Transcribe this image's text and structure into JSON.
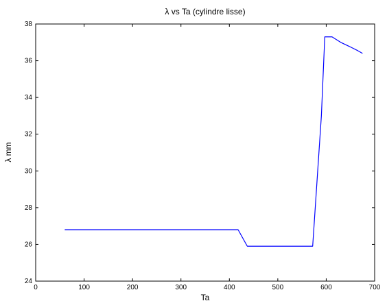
{
  "chart_data": {
    "type": "line",
    "title": "λ vs Ta (cylindre lisse)",
    "xlabel": "Ta",
    "ylabel": "λ mm",
    "xlim": [
      0,
      700
    ],
    "ylim": [
      24,
      38
    ],
    "x_ticks": [
      "0",
      "100",
      "200",
      "300",
      "400",
      "500",
      "600",
      "700"
    ],
    "y_ticks": [
      "24",
      "26",
      "28",
      "30",
      "32",
      "34",
      "36",
      "38"
    ],
    "grid": false,
    "legend": "none",
    "series": [
      {
        "color": "#0000ff",
        "x": [
          60,
          418,
          437,
          572,
          590,
          597,
          612,
          630,
          650,
          665,
          675
        ],
        "y": [
          26.8,
          26.8,
          25.9,
          25.9,
          33.0,
          37.3,
          37.3,
          37.0,
          36.75,
          36.55,
          36.4
        ]
      }
    ]
  }
}
